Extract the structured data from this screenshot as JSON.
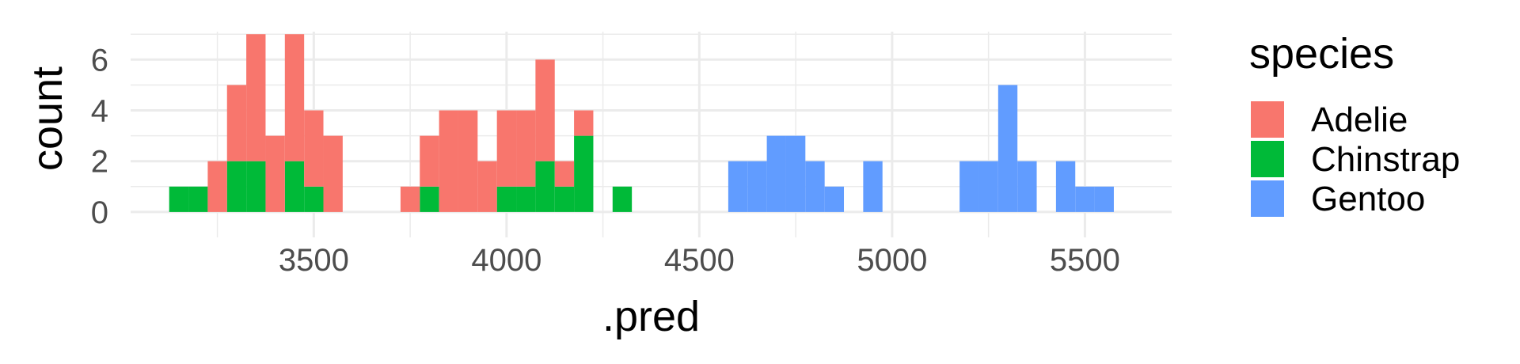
{
  "chart_data": {
    "type": "bar",
    "subtype": "stacked-histogram",
    "xlabel": ".pred",
    "ylabel": "count",
    "xlim": [
      3025,
      5725
    ],
    "ylim": [
      -1,
      7.1
    ],
    "xticks": [
      3500,
      4000,
      4500,
      5000,
      5500
    ],
    "yticks": [
      0,
      2,
      4,
      6
    ],
    "bin_width": 50,
    "grid": true,
    "legend": {
      "title": "species",
      "position": "right",
      "entries": [
        {
          "name": "Adelie",
          "color": "#F8766D"
        },
        {
          "name": "Chinstrap",
          "color": "#00BA38"
        },
        {
          "name": "Gentoo",
          "color": "#619CFF"
        }
      ]
    },
    "series": [
      {
        "name": "Chinstrap",
        "color": "#00BA38",
        "bins": [
          {
            "x0": 3125,
            "x1": 3175,
            "count": 1
          },
          {
            "x0": 3175,
            "x1": 3225,
            "count": 1
          },
          {
            "x0": 3275,
            "x1": 3325,
            "count": 2
          },
          {
            "x0": 3325,
            "x1": 3375,
            "count": 2
          },
          {
            "x0": 3425,
            "x1": 3475,
            "count": 2
          },
          {
            "x0": 3475,
            "x1": 3525,
            "count": 1
          },
          {
            "x0": 3775,
            "x1": 3825,
            "count": 1
          },
          {
            "x0": 3975,
            "x1": 4025,
            "count": 1
          },
          {
            "x0": 4025,
            "x1": 4075,
            "count": 1
          },
          {
            "x0": 4075,
            "x1": 4125,
            "count": 2
          },
          {
            "x0": 4125,
            "x1": 4175,
            "count": 1
          },
          {
            "x0": 4175,
            "x1": 4225,
            "count": 3
          },
          {
            "x0": 4275,
            "x1": 4325,
            "count": 1
          }
        ]
      },
      {
        "name": "Adelie",
        "color": "#F8766D",
        "bins": [
          {
            "x0": 3225,
            "x1": 3275,
            "count": 2
          },
          {
            "x0": 3275,
            "x1": 3325,
            "count": 3
          },
          {
            "x0": 3325,
            "x1": 3375,
            "count": 5
          },
          {
            "x0": 3375,
            "x1": 3425,
            "count": 3
          },
          {
            "x0": 3425,
            "x1": 3475,
            "count": 5
          },
          {
            "x0": 3475,
            "x1": 3525,
            "count": 3
          },
          {
            "x0": 3525,
            "x1": 3575,
            "count": 3
          },
          {
            "x0": 3725,
            "x1": 3775,
            "count": 1
          },
          {
            "x0": 3775,
            "x1": 3825,
            "count": 2
          },
          {
            "x0": 3825,
            "x1": 3875,
            "count": 4
          },
          {
            "x0": 3875,
            "x1": 3925,
            "count": 4
          },
          {
            "x0": 3925,
            "x1": 3975,
            "count": 2
          },
          {
            "x0": 3975,
            "x1": 4025,
            "count": 3
          },
          {
            "x0": 4025,
            "x1": 4075,
            "count": 3
          },
          {
            "x0": 4075,
            "x1": 4125,
            "count": 4
          },
          {
            "x0": 4125,
            "x1": 4175,
            "count": 1
          },
          {
            "x0": 4175,
            "x1": 4225,
            "count": 1
          }
        ]
      },
      {
        "name": "Gentoo",
        "color": "#619CFF",
        "bins": [
          {
            "x0": 4575,
            "x1": 4625,
            "count": 2
          },
          {
            "x0": 4625,
            "x1": 4675,
            "count": 2
          },
          {
            "x0": 4675,
            "x1": 4725,
            "count": 3
          },
          {
            "x0": 4725,
            "x1": 4775,
            "count": 3
          },
          {
            "x0": 4775,
            "x1": 4825,
            "count": 2
          },
          {
            "x0": 4825,
            "x1": 4875,
            "count": 1
          },
          {
            "x0": 4925,
            "x1": 4975,
            "count": 2
          },
          {
            "x0": 5175,
            "x1": 5225,
            "count": 2
          },
          {
            "x0": 5225,
            "x1": 5275,
            "count": 2
          },
          {
            "x0": 5275,
            "x1": 5325,
            "count": 5
          },
          {
            "x0": 5325,
            "x1": 5375,
            "count": 2
          },
          {
            "x0": 5425,
            "x1": 5475,
            "count": 2
          },
          {
            "x0": 5475,
            "x1": 5525,
            "count": 1
          },
          {
            "x0": 5525,
            "x1": 5575,
            "count": 1
          }
        ]
      }
    ]
  }
}
